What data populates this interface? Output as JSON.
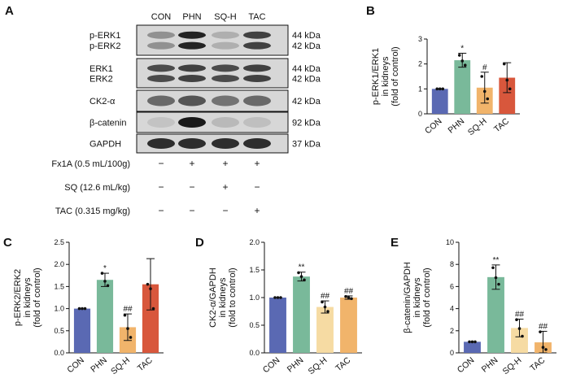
{
  "panels": {
    "A": "A",
    "B": "B",
    "C": "C",
    "D": "D",
    "E": "E"
  },
  "colors": {
    "CON": "#5a69b3",
    "PHN": "#79b99a",
    "SQ-H": "#f1b46b",
    "SQ-H-light": "#f6dba3",
    "TAC": "#d8573c"
  },
  "blot": {
    "lanes": [
      "CON",
      "PHN",
      "SQ-H",
      "TAC"
    ],
    "rows": [
      {
        "labels": [
          "p-ERK1",
          "p-ERK2"
        ],
        "sizes": [
          "44 kDa",
          "42 kDa"
        ],
        "intensity": [
          0.35,
          0.9,
          0.2,
          0.75
        ]
      },
      {
        "labels": [
          "ERK1",
          "ERK2"
        ],
        "sizes": [
          "44 kDa",
          "42 kDa"
        ],
        "intensity": [
          0.7,
          0.75,
          0.7,
          0.75
        ]
      },
      {
        "labels": [
          "CK2-α"
        ],
        "sizes": [
          "42 kDa"
        ],
        "intensity": [
          0.55,
          0.65,
          0.5,
          0.55
        ]
      },
      {
        "labels": [
          "β-catenin"
        ],
        "sizes": [
          "92 kDa"
        ],
        "intensity": [
          0.1,
          0.95,
          0.15,
          0.12
        ]
      },
      {
        "labels": [
          "GAPDH"
        ],
        "sizes": [
          "37 kDa"
        ],
        "intensity": [
          0.85,
          0.85,
          0.85,
          0.85
        ]
      }
    ],
    "treatments": [
      {
        "label": "Fx1A (0.5 mL/100g)",
        "marks": [
          "−",
          "+",
          "+",
          "+"
        ]
      },
      {
        "label": "SQ (12.6 mL/kg)",
        "marks": [
          "−",
          "−",
          "+",
          "−"
        ]
      },
      {
        "label": "TAC (0.315 mg/kg)",
        "marks": [
          "−",
          "−",
          "−",
          "+"
        ]
      }
    ]
  },
  "chart_data": [
    {
      "panel": "B",
      "type": "bar",
      "categories": [
        "CON",
        "PHN",
        "SQ-H",
        "TAC"
      ],
      "values": [
        1.0,
        2.15,
        1.05,
        1.45
      ],
      "errors": [
        0.0,
        0.28,
        0.62,
        0.6
      ],
      "points": [
        [
          1.0,
          1.0,
          1.0
        ],
        [
          2.35,
          2.12,
          1.95
        ],
        [
          1.5,
          0.9,
          0.6
        ],
        [
          2.0,
          1.35,
          1.0
        ]
      ],
      "bar_colors": [
        "#5a69b3",
        "#79b99a",
        "#f1b46b",
        "#d8573c"
      ],
      "significance": [
        "",
        "*",
        "#",
        ""
      ],
      "ylabel_lines": [
        "p-ERK1/ERK1",
        "in kidneys",
        "(fold of control)"
      ],
      "ylim": [
        0,
        3
      ],
      "yticks": [
        "0",
        "1",
        "2",
        "3"
      ]
    },
    {
      "panel": "C",
      "type": "bar",
      "categories": [
        "CON",
        "PHN",
        "SQ-H",
        "TAC"
      ],
      "values": [
        1.0,
        1.65,
        0.58,
        1.55
      ],
      "errors": [
        0.0,
        0.15,
        0.3,
        0.58
      ],
      "points": [
        [
          1.0,
          1.0,
          1.0
        ],
        [
          1.8,
          1.62,
          1.52
        ],
        [
          0.85,
          0.55,
          0.35
        ],
        [
          1.55,
          1.45,
          1.0
        ]
      ],
      "bar_colors": [
        "#5a69b3",
        "#79b99a",
        "#f1b46b",
        "#d8573c"
      ],
      "significance": [
        "",
        "*",
        "##",
        ""
      ],
      "ylabel_lines": [
        "p-ERK2/ERK2",
        "in kidneys",
        "(fold of control)"
      ],
      "ylim": [
        0,
        2.5
      ],
      "yticks": [
        "0.0",
        "0.5",
        "1.0",
        "1.5",
        "2.0",
        "2.5"
      ]
    },
    {
      "panel": "D",
      "type": "bar",
      "categories": [
        "CON",
        "PHN",
        "SQ-H",
        "TAC"
      ],
      "values": [
        1.0,
        1.38,
        0.83,
        1.0
      ],
      "errors": [
        0.0,
        0.08,
        0.11,
        0.03
      ],
      "points": [
        [
          1.0,
          1.0,
          1.0
        ],
        [
          1.45,
          1.38,
          1.32
        ],
        [
          0.92,
          0.83,
          0.75
        ],
        [
          1.02,
          1.0,
          0.98
        ]
      ],
      "bar_colors": [
        "#5a69b3",
        "#79b99a",
        "#f6dba3",
        "#f1b46b"
      ],
      "significance": [
        "",
        "**",
        "##",
        "##"
      ],
      "ylabel_lines": [
        "CK2-α/GAPDH",
        "in kidneys",
        "(fold to control)"
      ],
      "ylim": [
        0,
        2.0
      ],
      "yticks": [
        "0.0",
        "0.5",
        "1.0",
        "1.5",
        "2.0"
      ]
    },
    {
      "panel": "E",
      "type": "bar",
      "categories": [
        "CON",
        "PHN",
        "SQ-H",
        "TAC"
      ],
      "values": [
        1.0,
        6.85,
        2.25,
        0.95
      ],
      "errors": [
        0.0,
        1.1,
        0.8,
        1.0
      ],
      "points": [
        [
          1.0,
          1.0,
          1.0
        ],
        [
          7.7,
          6.8,
          6.2
        ],
        [
          3.0,
          2.2,
          1.5
        ],
        [
          1.9,
          0.5,
          0.3
        ]
      ],
      "bar_colors": [
        "#5a69b3",
        "#79b99a",
        "#f6dba3",
        "#f1b46b"
      ],
      "significance": [
        "",
        "**",
        "##",
        "##"
      ],
      "ylabel_lines": [
        "β-catenin/GAPDH",
        "in kidneys",
        "(fold of control)"
      ],
      "ylim": [
        0,
        10
      ],
      "yticks": [
        "0",
        "2",
        "4",
        "6",
        "8",
        "10"
      ]
    }
  ]
}
